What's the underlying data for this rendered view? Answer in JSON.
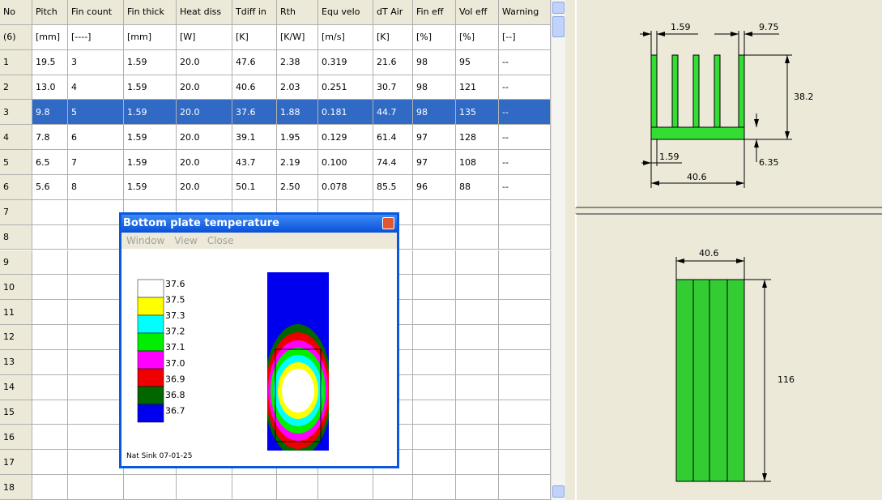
{
  "table": {
    "headers": [
      "No",
      "Pitch",
      "Fin count",
      "Fin thick",
      "Heat diss",
      "Tdiff in",
      "Rth",
      "Equ velo",
      "dT Air",
      "Fin eff",
      "Vol eff",
      "Warning"
    ],
    "units": [
      "(6)",
      "[mm]",
      "[----]",
      "[mm]",
      "[W]",
      "[K]",
      "[K/W]",
      "[m/s]",
      "[K]",
      "[%]",
      "[%]",
      "[--]"
    ],
    "rows": [
      [
        "1",
        "19.5",
        "3",
        "1.59",
        "20.0",
        "47.6",
        "2.38",
        "0.319",
        "21.6",
        "98",
        "95",
        "--"
      ],
      [
        "2",
        "13.0",
        "4",
        "1.59",
        "20.0",
        "40.6",
        "2.03",
        "0.251",
        "30.7",
        "98",
        "121",
        "--"
      ],
      [
        "3",
        "9.8",
        "5",
        "1.59",
        "20.0",
        "37.6",
        "1.88",
        "0.181",
        "44.7",
        "98",
        "135",
        "--"
      ],
      [
        "4",
        "7.8",
        "6",
        "1.59",
        "20.0",
        "39.1",
        "1.95",
        "0.129",
        "61.4",
        "97",
        "128",
        "--"
      ],
      [
        "5",
        "6.5",
        "7",
        "1.59",
        "20.0",
        "43.7",
        "2.19",
        "0.100",
        "74.4",
        "97",
        "108",
        "--"
      ],
      [
        "6",
        "5.6",
        "8",
        "1.59",
        "20.0",
        "50.1",
        "2.50",
        "0.078",
        "85.5",
        "96",
        "88",
        "--"
      ]
    ],
    "empty_rows": [
      "7",
      "8",
      "9",
      "10",
      "11",
      "12",
      "13",
      "14",
      "15",
      "16",
      "17",
      "18"
    ]
  },
  "popup": {
    "title": "Bottom plate temperature",
    "menu": [
      "Window",
      "View",
      "Close"
    ],
    "legend": [
      "37.6",
      "37.5",
      "37.3",
      "37.2",
      "37.1",
      "37.0",
      "36.9",
      "36.8",
      "36.7"
    ],
    "footer": "Nat Sink 07-01-25"
  },
  "profile_drawing": {
    "fin_thick": "1.59",
    "pitch": "9.75",
    "height": "38.2",
    "base_fin": "1.59",
    "base_thick": "6.35",
    "width": "40.6"
  },
  "top_drawing": {
    "width": "40.6",
    "length": "116"
  }
}
